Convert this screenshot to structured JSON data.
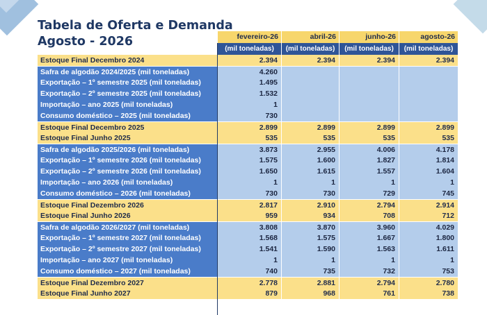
{
  "title": {
    "line1": "Tabela de Oferta e Demanda",
    "line2": "Agosto - 2026"
  },
  "columns": [
    "fevereiro-26",
    "abril-26",
    "junho-26",
    "agosto-26"
  ],
  "unit_label": "(mil toneladas)",
  "colors": {
    "title": "#1f3864",
    "yellow_row": "#fbe08a",
    "blue_label": "#4a7cc9",
    "blue_value": "#b4cdeb",
    "unit_header": "#2f5597"
  },
  "rows": [
    {
      "label": "Estoque Final Decembro 2024",
      "style": "yellow",
      "values": [
        "2.394",
        "2.394",
        "2.394",
        "2.394"
      ]
    },
    {
      "label": "Safra de algodão 2024/2025 (mil toneladas)",
      "style": "blue",
      "values": [
        "4.260",
        "",
        "",
        ""
      ]
    },
    {
      "label": "Exportação – 1º semestre 2025 (mil toneladas)",
      "style": "blue",
      "values": [
        "1.495",
        "",
        "",
        ""
      ]
    },
    {
      "label": "Exportação – 2º semestre 2025 (mil toneladas)",
      "style": "blue",
      "values": [
        "1.532",
        "",
        "",
        ""
      ]
    },
    {
      "label": "Importação – ano 2025 (mil toneladas)",
      "style": "blue",
      "values": [
        "1",
        "",
        "",
        ""
      ]
    },
    {
      "label": "Consumo doméstico – 2025 (mil toneladas)",
      "style": "blue",
      "values": [
        "730",
        "",
        "",
        ""
      ]
    },
    {
      "label": "Estoque Final Decembro 2025",
      "style": "yellow",
      "values": [
        "2.899",
        "2.899",
        "2.899",
        "2.899"
      ]
    },
    {
      "label": "Estoque Final Junho 2025",
      "style": "yellow",
      "values": [
        "535",
        "535",
        "535",
        "535"
      ]
    },
    {
      "label": "Safra de algodão 2025/2026 (mil toneladas)",
      "style": "blue",
      "values": [
        "3.873",
        "2.955",
        "4.006",
        "4.178"
      ]
    },
    {
      "label": "Exportação – 1º semestre 2026 (mil toneladas)",
      "style": "blue",
      "values": [
        "1.575",
        "1.600",
        "1.827",
        "1.814"
      ]
    },
    {
      "label": "Exportação – 2º semestre 2026 (mil toneladas)",
      "style": "blue",
      "values": [
        "1.650",
        "1.615",
        "1.557",
        "1.604"
      ]
    },
    {
      "label": "Importação – ano 2026 (mil toneladas)",
      "style": "blue",
      "values": [
        "1",
        "1",
        "1",
        "1"
      ]
    },
    {
      "label": "Consumo doméstico – 2026 (mil toneladas)",
      "style": "blue",
      "values": [
        "730",
        "730",
        "729",
        "745"
      ]
    },
    {
      "label": "Estoque Final Dezembro 2026",
      "style": "yellow",
      "values": [
        "2.817",
        "2.910",
        "2.794",
        "2.914"
      ]
    },
    {
      "label": "Estoque Final Junho 2026",
      "style": "yellow",
      "values": [
        "959",
        "934",
        "708",
        "712"
      ]
    },
    {
      "label": "Safra de algodão 2026/2027 (mil toneladas)",
      "style": "blue",
      "values": [
        "3.808",
        "3.870",
        "3.960",
        "4.029"
      ]
    },
    {
      "label": "Exportação – 1º semestre 2027 (mil toneladas)",
      "style": "blue",
      "values": [
        "1.568",
        "1.575",
        "1.667",
        "1.800"
      ]
    },
    {
      "label": "Exportação – 2º semestre 2027 (mil toneladas)",
      "style": "blue",
      "values": [
        "1.541",
        "1.590",
        "1.563",
        "1.611"
      ]
    },
    {
      "label": "Importação – ano 2027 (mil toneladas)",
      "style": "blue",
      "values": [
        "1",
        "1",
        "1",
        "1"
      ]
    },
    {
      "label": "Consumo doméstico – 2027 (mil toneladas)",
      "style": "blue",
      "values": [
        "740",
        "735",
        "732",
        "753"
      ]
    },
    {
      "label": "Estoque Final Dezembro 2027",
      "style": "yellow",
      "values": [
        "2.778",
        "2.881",
        "2.794",
        "2.780"
      ]
    },
    {
      "label": "Estoque Final Junho 2027",
      "style": "yellow",
      "values": [
        "879",
        "968",
        "761",
        "738"
      ]
    }
  ]
}
